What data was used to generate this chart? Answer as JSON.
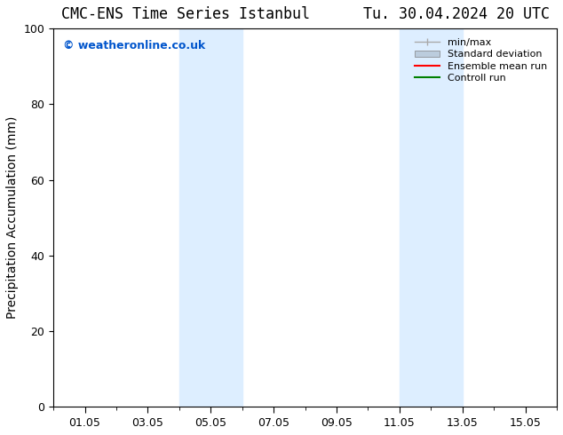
{
  "title": "CMC-ENS Time Series Istanbul      Tu. 30.04.2024 20 UTC",
  "ylabel": "Precipitation Accumulation (mm)",
  "ylim": [
    0,
    100
  ],
  "yticks": [
    0,
    20,
    40,
    60,
    80,
    100
  ],
  "xlim": [
    0,
    16
  ],
  "xtick_positions": [
    1,
    3,
    5,
    7,
    9,
    11,
    13,
    15
  ],
  "xtick_labels": [
    "01.05",
    "03.05",
    "05.05",
    "07.05",
    "09.05",
    "11.05",
    "13.05",
    "15.05"
  ],
  "shaded_regions": [
    {
      "xmin": 4.0,
      "xmax": 6.0,
      "color": "#ddeeff"
    },
    {
      "xmin": 11.0,
      "xmax": 13.0,
      "color": "#ddeeff"
    }
  ],
  "legend_entries": [
    {
      "label": "min/max",
      "color": "#aaaaaa",
      "style": "line"
    },
    {
      "label": "Standard deviation",
      "color": "#bbccdd",
      "style": "band"
    },
    {
      "label": "Ensemble mean run",
      "color": "red",
      "style": "line"
    },
    {
      "label": "Controll run",
      "color": "green",
      "style": "line"
    }
  ],
  "watermark_text": "© weatheronline.co.uk",
  "watermark_color": "#0055cc",
  "background_color": "#ffffff",
  "title_fontsize": 12,
  "axis_fontsize": 10,
  "tick_fontsize": 9
}
